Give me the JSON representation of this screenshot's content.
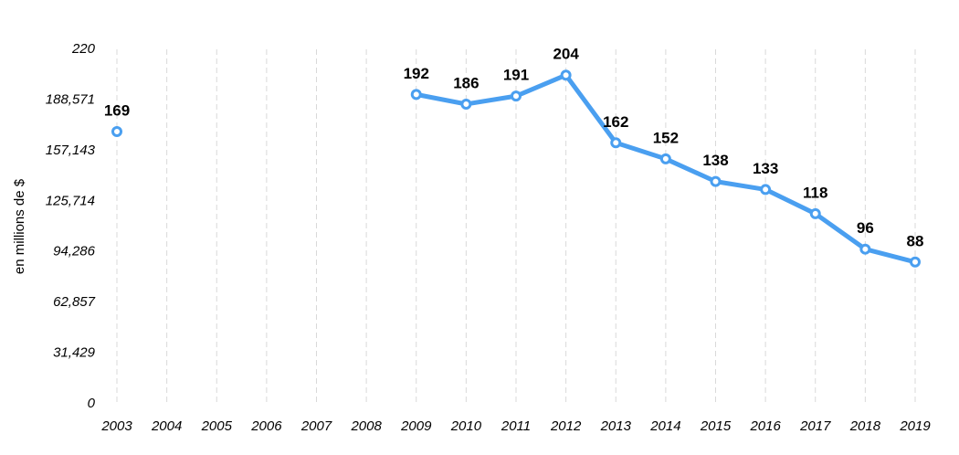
{
  "chart_data": {
    "type": "line",
    "y_label": "en millions de $",
    "categories": [
      "2003",
      "2004",
      "2005",
      "2006",
      "2007",
      "2008",
      "2009",
      "2010",
      "2011",
      "2012",
      "2013",
      "2014",
      "2015",
      "2016",
      "2017",
      "2018",
      "2019"
    ],
    "values": [
      169,
      null,
      null,
      null,
      null,
      null,
      192,
      186,
      191,
      204,
      162,
      152,
      138,
      133,
      118,
      96,
      88
    ],
    "color": "#4a9ff0",
    "ylim": [
      0,
      220
    ],
    "yticks": [
      0,
      {
        "value": 31.429,
        "label": "31,429"
      },
      {
        "value": 62.857,
        "label": "62,857"
      },
      {
        "value": 94.286,
        "label": "94,286"
      },
      {
        "value": 125.714,
        "label": "125,714"
      },
      {
        "value": 157.143,
        "label": "157,143"
      },
      {
        "value": 188.571,
        "label": "188,571"
      },
      220
    ],
    "grid": true
  }
}
